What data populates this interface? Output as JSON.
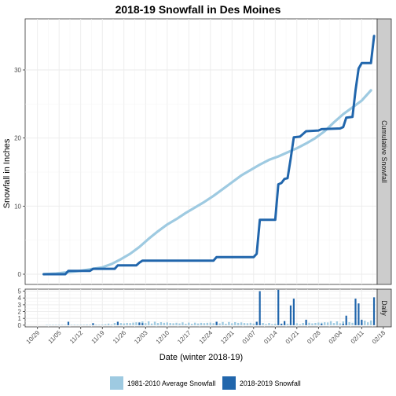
{
  "chart_data": {
    "type": "line",
    "title": "2018-19 Snowfall in Des Moines",
    "xlabel": "Date (winter 2018-19)",
    "ylabel": "Snowfall in Inches",
    "x_tick_labels": [
      "10/29",
      "11/05",
      "11/12",
      "11/19",
      "11/26",
      "12/03",
      "12/10",
      "12/17",
      "12/24",
      "12/31",
      "01/07",
      "01/14",
      "01/21",
      "01/28",
      "02/04",
      "02/11",
      "02/18"
    ],
    "x_range_days": [
      -4,
      110
    ],
    "panels": [
      {
        "strip_label": "Cumulative Snowfall",
        "type": "line",
        "ylim": [
          -1.5,
          37.5
        ],
        "y_ticks": [
          0,
          10,
          20,
          30
        ],
        "series": [
          {
            "name": "1981-2010 Average Snowfall",
            "color": "#9ecae1",
            "points": [
              [
                2,
                0
              ],
              [
                6,
                0.1
              ],
              [
                10,
                0.3
              ],
              [
                14,
                0.5
              ],
              [
                18,
                0.8
              ],
              [
                21,
                1.0
              ],
              [
                24,
                1.5
              ],
              [
                27,
                2.2
              ],
              [
                30,
                3.0
              ],
              [
                33,
                4.0
              ],
              [
                36,
                5.2
              ],
              [
                39,
                6.3
              ],
              [
                42,
                7.3
              ],
              [
                45,
                8.1
              ],
              [
                48,
                9.0
              ],
              [
                51,
                9.8
              ],
              [
                54,
                10.6
              ],
              [
                57,
                11.5
              ],
              [
                60,
                12.5
              ],
              [
                63,
                13.5
              ],
              [
                66,
                14.5
              ],
              [
                69,
                15.3
              ],
              [
                72,
                16.1
              ],
              [
                75,
                16.8
              ],
              [
                78,
                17.3
              ],
              [
                81,
                17.9
              ],
              [
                84,
                18.5
              ],
              [
                87,
                19.2
              ],
              [
                90,
                20.0
              ],
              [
                93,
                21.0
              ],
              [
                96,
                22.3
              ],
              [
                99,
                23.5
              ],
              [
                102,
                24.5
              ],
              [
                105,
                25.5
              ],
              [
                108,
                27.0
              ]
            ]
          },
          {
            "name": "2018-2019 Snowfall",
            "color": "#2166ac",
            "points": [
              [
                2,
                0
              ],
              [
                9,
                0
              ],
              [
                10,
                0.5
              ],
              [
                17,
                0.5
              ],
              [
                18,
                0.8
              ],
              [
                25,
                0.8
              ],
              [
                26,
                1.3
              ],
              [
                32,
                1.3
              ],
              [
                33,
                1.7
              ],
              [
                34,
                2.0
              ],
              [
                57,
                2.0
              ],
              [
                58,
                2.5
              ],
              [
                70,
                2.5
              ],
              [
                71,
                3.0
              ],
              [
                72,
                8.0
              ],
              [
                77,
                8.0
              ],
              [
                78,
                13.2
              ],
              [
                79,
                13.4
              ],
              [
                80,
                14.0
              ],
              [
                81,
                14.1
              ],
              [
                82,
                17.0
              ],
              [
                83,
                20.1
              ],
              [
                85,
                20.2
              ],
              [
                87,
                21.0
              ],
              [
                91,
                21.1
              ],
              [
                92,
                21.3
              ],
              [
                98,
                21.4
              ],
              [
                99,
                21.6
              ],
              [
                100,
                23.0
              ],
              [
                102,
                23.1
              ],
              [
                103,
                27.0
              ],
              [
                104,
                30.2
              ],
              [
                105,
                31.0
              ],
              [
                108,
                31.0
              ],
              [
                109,
                35.0
              ]
            ]
          }
        ]
      },
      {
        "strip_label": "Daily",
        "type": "bar",
        "ylim": [
          -0.25,
          5.3
        ],
        "y_ticks": [
          0,
          1,
          2,
          3,
          4,
          5
        ],
        "series": [
          {
            "name": "1981-2010 Average Snowfall",
            "color": "#9ecae1",
            "values_by_day_range": {
              "start_day": 2,
              "end_day": 109,
              "value": "approx. 0.05-0.6 daily climatological average"
            }
          },
          {
            "name": "2018-2019 Snowfall",
            "color": "#2166ac",
            "bars": [
              [
                10,
                0.5
              ],
              [
                18,
                0.3
              ],
              [
                26,
                0.5
              ],
              [
                33,
                0.4
              ],
              [
                34,
                0.3
              ],
              [
                58,
                0.5
              ],
              [
                71,
                0.5
              ],
              [
                72,
                5.0
              ],
              [
                78,
                5.2
              ],
              [
                79,
                0.2
              ],
              [
                80,
                0.6
              ],
              [
                82,
                2.9
              ],
              [
                83,
                3.9
              ],
              [
                87,
                0.8
              ],
              [
                92,
                0.2
              ],
              [
                99,
                0.2
              ],
              [
                100,
                1.4
              ],
              [
                103,
                3.9
              ],
              [
                104,
                3.2
              ],
              [
                105,
                0.8
              ],
              [
                109,
                4.1
              ]
            ]
          }
        ]
      }
    ],
    "legend": {
      "position": "bottom",
      "items": [
        {
          "label": "1981-2010 Average Snowfall",
          "color": "#9ecae1"
        },
        {
          "label": "2018-2019 Snowfall",
          "color": "#2166ac"
        }
      ]
    },
    "grid": true
  }
}
